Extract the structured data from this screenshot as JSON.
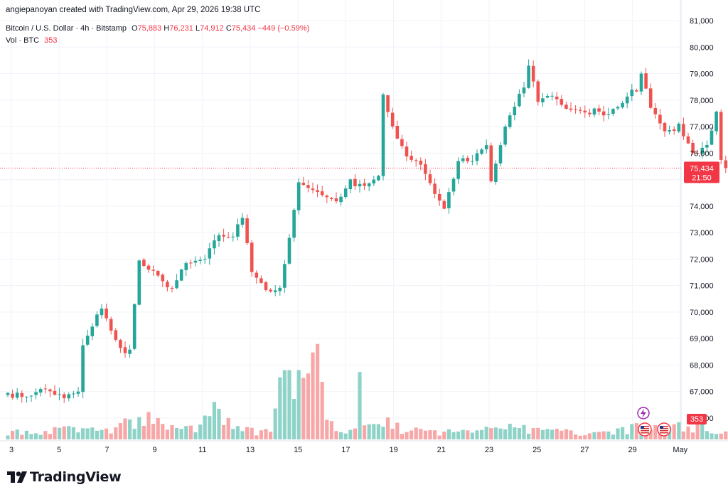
{
  "header": {
    "created_by": "angiepanoyan created with TradingView.com, Apr 29, 2026 19:38 UTC",
    "symbol": "Bitcoin / U.S. Dollar · 4h · Bitstamp",
    "open_label": "O",
    "open": "75,883",
    "high_label": "H",
    "high": "76,231",
    "low_label": "L",
    "low": "74,912",
    "close_label": "C",
    "close": "75,434",
    "change": "−449 (−0.59%)",
    "vol_label": "Vol · BTC",
    "vol_value": "353"
  },
  "price_badge": {
    "price": "75,434",
    "countdown": "21:50"
  },
  "volume_badge": "353",
  "footer": {
    "brand": "TradingView"
  },
  "colors": {
    "up": "#26a69a",
    "down": "#ef5350",
    "up_vol": "#8fd3c8",
    "down_vol": "#f7a7a7",
    "grid": "#f0f3fa",
    "axis_text": "#131722",
    "badge": "#f23645"
  },
  "icons": [
    "tradingview-logo-icon",
    "lightning-event-icon",
    "us-flag-event-icon"
  ],
  "chart_data": {
    "type": "candlestick",
    "interval": "4h",
    "y_axis": {
      "side": "right",
      "ticks": [
        "81,000",
        "80,000",
        "79,000",
        "78,000",
        "77,000",
        "76,000",
        "75,000",
        "74,000",
        "73,000",
        "72,000",
        "71,000",
        "70,000",
        "69,000",
        "68,000",
        "67,000",
        "66,000"
      ],
      "ylim": [
        66000,
        81000
      ]
    },
    "x_axis": {
      "ticks": [
        "3",
        "5",
        "7",
        "9",
        "11",
        "13",
        "15",
        "17",
        "19",
        "21",
        "23",
        "25",
        "27",
        "29",
        "May"
      ]
    },
    "last_price": 75434,
    "anchors": [
      [
        0,
        66950
      ],
      [
        3,
        66800
      ],
      [
        8,
        67100
      ],
      [
        12,
        66750
      ],
      [
        15,
        67000
      ],
      [
        16,
        68700
      ],
      [
        20,
        70200
      ],
      [
        23,
        68900
      ],
      [
        25,
        68400
      ],
      [
        26,
        68700
      ],
      [
        28,
        71900
      ],
      [
        32,
        71300
      ],
      [
        35,
        70900
      ],
      [
        38,
        71800
      ],
      [
        42,
        72000
      ],
      [
        45,
        72900
      ],
      [
        48,
        72850
      ],
      [
        50,
        73600
      ],
      [
        52,
        71600
      ],
      [
        55,
        70850
      ],
      [
        58,
        70800
      ],
      [
        60,
        72800
      ],
      [
        62,
        74800
      ],
      [
        64,
        74800
      ],
      [
        67,
        74400
      ],
      [
        70,
        74200
      ],
      [
        73,
        74900
      ],
      [
        76,
        74800
      ],
      [
        79,
        75100
      ],
      [
        80,
        78100
      ],
      [
        82,
        77000
      ],
      [
        85,
        75900
      ],
      [
        88,
        75600
      ],
      [
        91,
        74500
      ],
      [
        93,
        73900
      ],
      [
        96,
        75700
      ],
      [
        99,
        75700
      ],
      [
        102,
        76300
      ],
      [
        103,
        74900
      ],
      [
        106,
        77000
      ],
      [
        110,
        78500
      ],
      [
        111,
        79300
      ],
      [
        113,
        78000
      ],
      [
        116,
        78200
      ],
      [
        119,
        77700
      ],
      [
        122,
        77500
      ],
      [
        125,
        77600
      ],
      [
        128,
        77500
      ],
      [
        131,
        78000
      ],
      [
        134,
        78400
      ],
      [
        135,
        79000
      ],
      [
        137,
        77800
      ],
      [
        140,
        76800
      ],
      [
        143,
        77000
      ],
      [
        146,
        75900
      ],
      [
        149,
        76200
      ],
      [
        151,
        77500
      ],
      [
        152,
        75800
      ],
      [
        153,
        75434
      ]
    ],
    "volume_range": [
      0,
      300
    ],
    "volume_anchors": [
      [
        0,
        20
      ],
      [
        8,
        25
      ],
      [
        15,
        30
      ],
      [
        22,
        25
      ],
      [
        28,
        60
      ],
      [
        35,
        40
      ],
      [
        40,
        25
      ],
      [
        44,
        90
      ],
      [
        48,
        30
      ],
      [
        56,
        20
      ],
      [
        59,
        180
      ],
      [
        61,
        160
      ],
      [
        64,
        150
      ],
      [
        66,
        240
      ],
      [
        68,
        40
      ],
      [
        75,
        25
      ],
      [
        80,
        60
      ],
      [
        82,
        35
      ],
      [
        90,
        20
      ],
      [
        100,
        25
      ],
      [
        104,
        60
      ],
      [
        109,
        30
      ],
      [
        115,
        25
      ],
      [
        122,
        20
      ],
      [
        132,
        30
      ],
      [
        140,
        40
      ],
      [
        148,
        35
      ],
      [
        153,
        20
      ]
    ]
  }
}
